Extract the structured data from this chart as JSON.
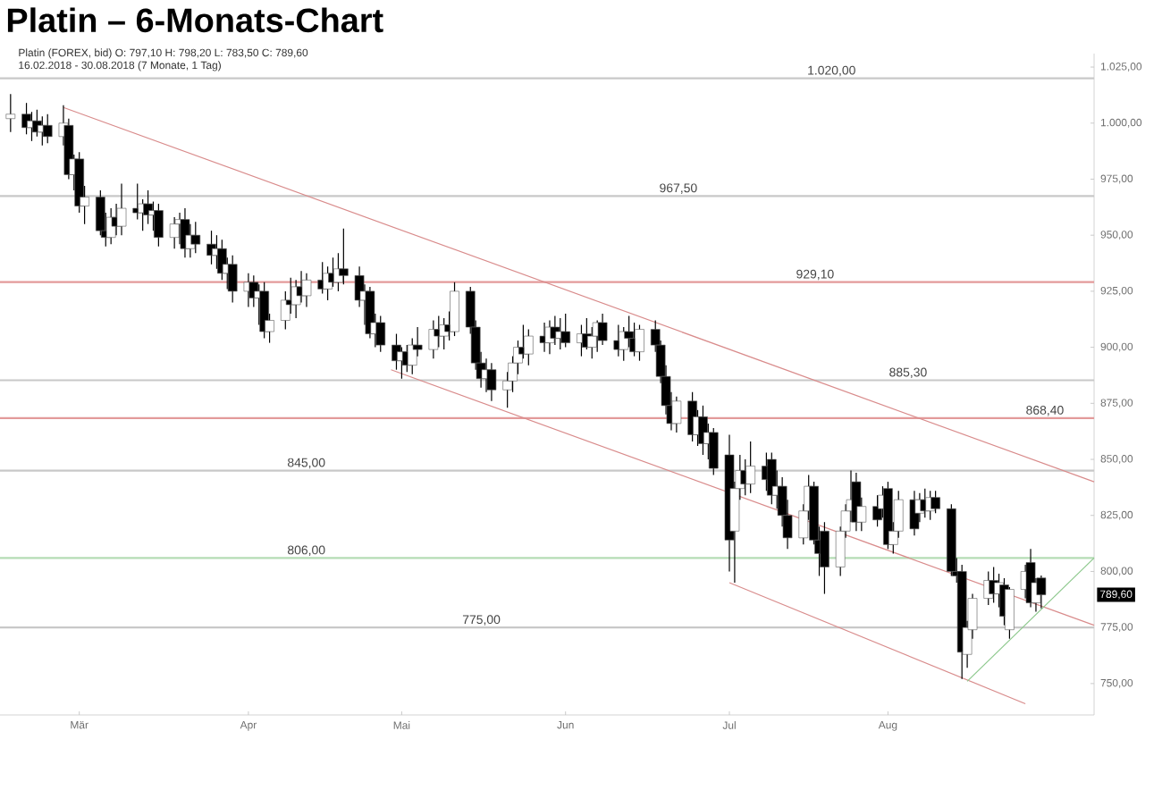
{
  "chart_data": {
    "type": "candlestick",
    "title": "Platin – 6-Monats-Chart",
    "subtitle": "Platin (FOREX, bid)  O: 797,10  H: 798,20  L: 783,50  C: 789,60",
    "annotations": [
      "16.02.2018 - 30.08.2018  (7 Monate, 1 Tag)",
      "789,60"
    ],
    "x": [
      "2018-02-16",
      "2018-02-19",
      "2018-02-20",
      "2018-02-21",
      "2018-02-22",
      "2018-02-23",
      "2018-02-26",
      "2018-02-27",
      "2018-02-28",
      "2018-03-01",
      "2018-03-02",
      "2018-03-05",
      "2018-03-06",
      "2018-03-07",
      "2018-03-08",
      "2018-03-09",
      "2018-03-12",
      "2018-03-13",
      "2018-03-14",
      "2018-03-15",
      "2018-03-16",
      "2018-03-19",
      "2018-03-20",
      "2018-03-21",
      "2018-03-22",
      "2018-03-23",
      "2018-03-26",
      "2018-03-27",
      "2018-03-28",
      "2018-03-29",
      "2018-03-30",
      "2018-04-02",
      "2018-04-03",
      "2018-04-04",
      "2018-04-05",
      "2018-04-06",
      "2018-04-09",
      "2018-04-10",
      "2018-04-11",
      "2018-04-12",
      "2018-04-13",
      "2018-04-16",
      "2018-04-17",
      "2018-04-18",
      "2018-04-19",
      "2018-04-20",
      "2018-04-23",
      "2018-04-24",
      "2018-04-25",
      "2018-04-26",
      "2018-04-27",
      "2018-04-30",
      "2018-05-01",
      "2018-05-02",
      "2018-05-03",
      "2018-05-04",
      "2018-05-07",
      "2018-05-08",
      "2018-05-09",
      "2018-05-10",
      "2018-05-11",
      "2018-05-14",
      "2018-05-15",
      "2018-05-16",
      "2018-05-17",
      "2018-05-18",
      "2018-05-21",
      "2018-05-22",
      "2018-05-23",
      "2018-05-24",
      "2018-05-25",
      "2018-05-28",
      "2018-05-29",
      "2018-05-30",
      "2018-05-31",
      "2018-06-01",
      "2018-06-04",
      "2018-06-05",
      "2018-06-06",
      "2018-06-07",
      "2018-06-08",
      "2018-06-11",
      "2018-06-12",
      "2018-06-13",
      "2018-06-14",
      "2018-06-15",
      "2018-06-18",
      "2018-06-19",
      "2018-06-20",
      "2018-06-21",
      "2018-06-22",
      "2018-06-25",
      "2018-06-26",
      "2018-06-27",
      "2018-06-28",
      "2018-06-29",
      "2018-07-02",
      "2018-07-03",
      "2018-07-04",
      "2018-07-05",
      "2018-07-06",
      "2018-07-09",
      "2018-07-10",
      "2018-07-11",
      "2018-07-12",
      "2018-07-13",
      "2018-07-16",
      "2018-07-17",
      "2018-07-18",
      "2018-07-19",
      "2018-07-20",
      "2018-07-23",
      "2018-07-24",
      "2018-07-25",
      "2018-07-26",
      "2018-07-27",
      "2018-07-30",
      "2018-07-31",
      "2018-08-01",
      "2018-08-02",
      "2018-08-03",
      "2018-08-06",
      "2018-08-07",
      "2018-08-08",
      "2018-08-09",
      "2018-08-10",
      "2018-08-13",
      "2018-08-14",
      "2018-08-15",
      "2018-08-16",
      "2018-08-17",
      "2018-08-20",
      "2018-08-21",
      "2018-08-22",
      "2018-08-23",
      "2018-08-24",
      "2018-08-27",
      "2018-08-28",
      "2018-08-29",
      "2018-08-30"
    ],
    "ohlc": [
      [
        1002,
        1013,
        996,
        1004
      ],
      [
        1004,
        1009,
        995,
        998
      ],
      [
        998,
        1005,
        992,
        1001
      ],
      [
        1001,
        1006,
        994,
        996
      ],
      [
        996,
        1003,
        990,
        999
      ],
      [
        999,
        1004,
        991,
        994
      ],
      [
        994,
        1008,
        990,
        1000
      ],
      [
        999,
        1002,
        975,
        977
      ],
      [
        977,
        986,
        970,
        984
      ],
      [
        984,
        987,
        960,
        963
      ],
      [
        963,
        972,
        955,
        967
      ],
      [
        967,
        970,
        950,
        952
      ],
      [
        952,
        960,
        945,
        949
      ],
      [
        949,
        962,
        946,
        958
      ],
      [
        958,
        964,
        950,
        954
      ],
      [
        954,
        973,
        950,
        962
      ],
      [
        962,
        973,
        957,
        960
      ],
      [
        960,
        966,
        952,
        964
      ],
      [
        964,
        970,
        955,
        959
      ],
      [
        959,
        965,
        952,
        961
      ],
      [
        961,
        964,
        945,
        949
      ],
      [
        949,
        958,
        944,
        955
      ],
      [
        955,
        960,
        946,
        957
      ],
      [
        957,
        962,
        940,
        944
      ],
      [
        944,
        955,
        940,
        950
      ],
      [
        950,
        956,
        942,
        946
      ],
      [
        946,
        952,
        937,
        941
      ],
      [
        941,
        950,
        935,
        944
      ],
      [
        944,
        948,
        930,
        933
      ],
      [
        933,
        940,
        926,
        937
      ],
      [
        937,
        941,
        920,
        925
      ],
      [
        925,
        933,
        918,
        929
      ],
      [
        929,
        932,
        918,
        922
      ],
      [
        922,
        928,
        910,
        925
      ],
      [
        925,
        929,
        904,
        907
      ],
      [
        907,
        915,
        902,
        912
      ],
      [
        912,
        925,
        908,
        921
      ],
      [
        921,
        931,
        915,
        919
      ],
      [
        919,
        930,
        913,
        927
      ],
      [
        927,
        934,
        920,
        923
      ],
      [
        923,
        933,
        918,
        930
      ],
      [
        930,
        938,
        924,
        926
      ],
      [
        926,
        936,
        921,
        933
      ],
      [
        933,
        940,
        927,
        929
      ],
      [
        929,
        942,
        925,
        935
      ],
      [
        935,
        953,
        928,
        932
      ],
      [
        932,
        936,
        918,
        921
      ],
      [
        921,
        928,
        910,
        925
      ],
      [
        925,
        927,
        904,
        906
      ],
      [
        906,
        915,
        900,
        911
      ],
      [
        911,
        914,
        898,
        901
      ],
      [
        901,
        906,
        890,
        894
      ],
      [
        894,
        900,
        886,
        898
      ],
      [
        898,
        901,
        889,
        892
      ],
      [
        892,
        904,
        888,
        901
      ],
      [
        901,
        909,
        896,
        899
      ],
      [
        899,
        912,
        895,
        908
      ],
      [
        908,
        914,
        900,
        905
      ],
      [
        905,
        913,
        899,
        910
      ],
      [
        910,
        916,
        903,
        907
      ],
      [
        907,
        929,
        905,
        925
      ],
      [
        925,
        927,
        906,
        909
      ],
      [
        909,
        912,
        890,
        893
      ],
      [
        893,
        898,
        882,
        886
      ],
      [
        886,
        895,
        880,
        890
      ],
      [
        890,
        893,
        876,
        881
      ],
      [
        881,
        889,
        873,
        885
      ],
      [
        885,
        896,
        880,
        893
      ],
      [
        893,
        903,
        888,
        900
      ],
      [
        900,
        910,
        895,
        897
      ],
      [
        897,
        908,
        892,
        905
      ],
      [
        905,
        911,
        898,
        902
      ],
      [
        902,
        912,
        897,
        909
      ],
      [
        909,
        914,
        901,
        904
      ],
      [
        904,
        913,
        899,
        907
      ],
      [
        907,
        915,
        900,
        902
      ],
      [
        902,
        910,
        896,
        906
      ],
      [
        906,
        913,
        899,
        900
      ],
      [
        900,
        909,
        895,
        905
      ],
      [
        905,
        912,
        898,
        911
      ],
      [
        911,
        915,
        901,
        903
      ],
      [
        903,
        910,
        896,
        899
      ],
      [
        899,
        909,
        894,
        907
      ],
      [
        907,
        914,
        900,
        904
      ],
      [
        904,
        911,
        896,
        898
      ],
      [
        898,
        910,
        894,
        908
      ],
      [
        908,
        912,
        898,
        901
      ],
      [
        901,
        903,
        884,
        887
      ],
      [
        887,
        892,
        870,
        874
      ],
      [
        874,
        880,
        863,
        866
      ],
      [
        866,
        878,
        862,
        876
      ],
      [
        876,
        880,
        858,
        861
      ],
      [
        861,
        872,
        856,
        869
      ],
      [
        869,
        874,
        852,
        857
      ],
      [
        857,
        866,
        850,
        862
      ],
      [
        862,
        864,
        843,
        846
      ],
      [
        852,
        861,
        800,
        814
      ],
      [
        818,
        840,
        795,
        837
      ],
      [
        837,
        852,
        832,
        845
      ],
      [
        845,
        850,
        834,
        839
      ],
      [
        839,
        858,
        835,
        847
      ],
      [
        847,
        853,
        836,
        841
      ],
      [
        850,
        853,
        830,
        834
      ],
      [
        834,
        845,
        828,
        838
      ],
      [
        838,
        842,
        820,
        825
      ],
      [
        825,
        832,
        810,
        815
      ],
      [
        815,
        830,
        812,
        827
      ],
      [
        827,
        843,
        823,
        838
      ],
      [
        838,
        840,
        812,
        814
      ],
      [
        814,
        820,
        798,
        808
      ],
      [
        818,
        822,
        790,
        802
      ],
      [
        802,
        820,
        798,
        818
      ],
      [
        818,
        830,
        815,
        827
      ],
      [
        827,
        845,
        822,
        832
      ],
      [
        840,
        844,
        818,
        822
      ],
      [
        822,
        833,
        818,
        829
      ],
      [
        829,
        834,
        820,
        823
      ],
      [
        828,
        838,
        824,
        834
      ],
      [
        837,
        840,
        810,
        812
      ],
      [
        812,
        822,
        808,
        818
      ],
      [
        818,
        836,
        815,
        832
      ],
      [
        832,
        836,
        816,
        819
      ],
      [
        826,
        835,
        822,
        832
      ],
      [
        832,
        837,
        824,
        827
      ],
      [
        827,
        836,
        823,
        833
      ],
      [
        833,
        836,
        826,
        828
      ],
      [
        828,
        830,
        798,
        800
      ],
      [
        800,
        806,
        795,
        798
      ],
      [
        800,
        803,
        752,
        764
      ],
      [
        763,
        778,
        757,
        775
      ],
      [
        774,
        790,
        770,
        788
      ],
      [
        788,
        800,
        785,
        796
      ],
      [
        796,
        802,
        786,
        790
      ],
      [
        790,
        799,
        784,
        795
      ],
      [
        794,
        797,
        776,
        780
      ],
      [
        774,
        793,
        770,
        792
      ],
      [
        792,
        803,
        788,
        800
      ],
      [
        804,
        810,
        784,
        786
      ],
      [
        786,
        797,
        782,
        795
      ],
      [
        797.1,
        798.2,
        783.5,
        789.6
      ]
    ],
    "series": [
      {
        "type": "line",
        "color": "#d98c8c",
        "x": [
          "2018-02-26",
          "2018-09-09"
        ],
        "values": [
          1007,
          840
        ]
      },
      {
        "type": "line",
        "color": "#d98c8c",
        "x": [
          "2018-04-29",
          "2018-09-09"
        ],
        "values": [
          890,
          776
        ]
      },
      {
        "type": "line",
        "color": "#d98c8c",
        "x": [
          "2018-07-02",
          "2018-08-27"
        ],
        "values": [
          795,
          741
        ]
      },
      {
        "type": "line",
        "color": "#8cc88c",
        "x": [
          "2018-08-16",
          "2018-09-09"
        ],
        "values": [
          751,
          806
        ]
      }
    ],
    "ref_lines": [
      {
        "axis": "y",
        "value": 1020,
        "label": "1.020,00",
        "color": "#c8c8c8"
      },
      {
        "axis": "y",
        "value": 967.5,
        "label": "967,50",
        "color": "#c8c8c8"
      },
      {
        "axis": "y",
        "value": 929.1,
        "label": "929,10",
        "color": "#e39a9a"
      },
      {
        "axis": "y",
        "value": 885.3,
        "label": "885,30",
        "color": "#c8c8c8"
      },
      {
        "axis": "y",
        "value": 868.4,
        "label": "868,40",
        "color": "#e39a9a"
      },
      {
        "axis": "y",
        "value": 845,
        "label": "845,00",
        "color": "#c8c8c8"
      },
      {
        "axis": "y",
        "value": 806,
        "label": "806,00",
        "color": "#b5dcb5"
      },
      {
        "axis": "y",
        "value": 775,
        "label": "775,00",
        "color": "#c8c8c8"
      }
    ],
    "xlim": [
      "2018-02-14",
      "2018-09-09"
    ],
    "xticks": [
      {
        "value": "2018-03-01",
        "label": "Mär"
      },
      {
        "value": "2018-04-02",
        "label": "Apr"
      },
      {
        "value": "2018-05-01",
        "label": "Mai"
      },
      {
        "value": "2018-06-01",
        "label": "Jun"
      },
      {
        "value": "2018-07-02",
        "label": "Jul"
      },
      {
        "value": "2018-08-01",
        "label": "Aug"
      }
    ],
    "ylim": [
      736,
      1031
    ],
    "yticks": [
      {
        "value": 750,
        "label": "750,00"
      },
      {
        "value": 775,
        "label": "775,00"
      },
      {
        "value": 800,
        "label": "800,00"
      },
      {
        "value": 825,
        "label": "825,00"
      },
      {
        "value": 850,
        "label": "850,00"
      },
      {
        "value": 875,
        "label": "875,00"
      },
      {
        "value": 900,
        "label": "900,00"
      },
      {
        "value": 925,
        "label": "925,00"
      },
      {
        "value": 950,
        "label": "950,00"
      },
      {
        "value": 975,
        "label": "975,00"
      },
      {
        "value": 1000,
        "label": "1.000,00"
      },
      {
        "value": 1025,
        "label": "1.025,00"
      }
    ]
  }
}
